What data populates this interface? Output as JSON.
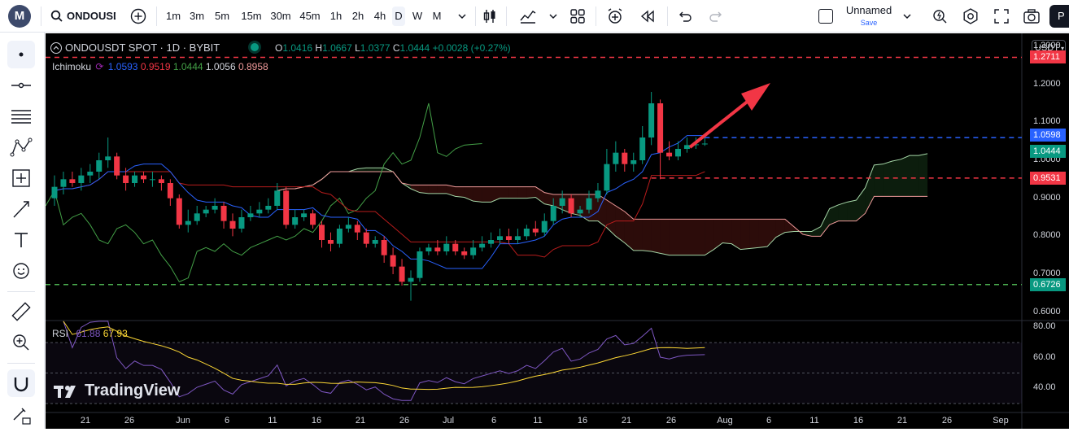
{
  "toolbar": {
    "symbol": "ONDOUSDT",
    "timeframes": [
      "1m",
      "3m",
      "5m",
      "15m",
      "30m",
      "45m",
      "1h",
      "2h",
      "4h",
      "D",
      "W",
      "M"
    ],
    "active_timeframe": "D",
    "layout_name": "Unnamed",
    "save_label": "Save",
    "publish_label": "P"
  },
  "chart_header": {
    "title": "ONDOUSDT SPOT · 1D · BYBIT",
    "o_label": "O",
    "o": "1.0416",
    "h_label": "H",
    "h": "1.0667",
    "l_label": "L",
    "l": "1.0377",
    "c_label": "C",
    "c": "1.0444",
    "change": "+0.0028 (+0.27%)",
    "ichimoku_label": "Ichimoku",
    "ichimoku_values": [
      "1.0593",
      "0.9519",
      "1.0444",
      "1.0056",
      "0.8958"
    ],
    "rsi_label": "RSI",
    "rsi_values": [
      "61.88",
      "67.93"
    ]
  },
  "currency": "USDT",
  "watermark": "TradingView",
  "price_axis": [
    "1.3000",
    "1.2000",
    "1.1000",
    "1.0000",
    "0.9000",
    "0.8000",
    "0.7000",
    "0.6000"
  ],
  "rsi_axis": [
    "80.00",
    "60.00",
    "40.00"
  ],
  "price_labels": [
    {
      "value": "1.2711",
      "color": "#f23645"
    },
    {
      "value": "1.0598",
      "color": "#2962ff"
    },
    {
      "value": "1.0444",
      "color": "#089981"
    },
    {
      "value": "0.9531",
      "color": "#f23645"
    },
    {
      "value": "0.6726",
      "color": "#089981"
    }
  ],
  "time_axis": [
    "21",
    "26",
    "Jun",
    "6",
    "11",
    "16",
    "21",
    "26",
    "Jul",
    "6",
    "11",
    "16",
    "21",
    "26",
    "Aug",
    "6",
    "11",
    "16",
    "21",
    "26",
    "Sep"
  ],
  "colors": {
    "up": "#089981",
    "down": "#f23645",
    "tenkan": "#2962ff",
    "kijun": "#b71c1c",
    "lagging": "#43a047",
    "senkou_a": "#a5d6a7",
    "senkou_b": "#ef9a9a",
    "rsi": "#7e57c2",
    "rsi_ma": "#fdd835"
  },
  "chart_data": {
    "type": "candlestick",
    "x": [
      "May 15",
      "May 16",
      "May 17",
      "May 18",
      "May 19",
      "May 20",
      "May 21",
      "May 22",
      "May 23",
      "May 24",
      "May 25",
      "May 26",
      "May 27",
      "May 28",
      "May 29",
      "May 30",
      "May 31",
      "Jun 1",
      "Jun 2",
      "Jun 3",
      "Jun 4",
      "Jun 5",
      "Jun 6",
      "Jun 7",
      "Jun 8",
      "Jun 9",
      "Jun 10",
      "Jun 11",
      "Jun 12",
      "Jun 13",
      "Jun 14",
      "Jun 15",
      "Jun 16",
      "Jun 17",
      "Jun 18",
      "Jun 19",
      "Jun 20",
      "Jun 21",
      "Jun 22",
      "Jun 23",
      "Jun 24",
      "Jun 25",
      "Jun 26",
      "Jun 27",
      "Jun 28",
      "Jun 29",
      "Jun 30",
      "Jul 1",
      "Jul 2",
      "Jul 3",
      "Jul 4",
      "Jul 5",
      "Jul 6",
      "Jul 7",
      "Jul 8",
      "Jul 9",
      "Jul 10",
      "Jul 11",
      "Jul 12",
      "Jul 13",
      "Jul 14",
      "Jul 15",
      "Jul 16",
      "Jul 17",
      "Jul 18",
      "Jul 19",
      "Jul 20",
      "Jul 21",
      "Jul 22",
      "Jul 23",
      "Jul 24",
      "Jul 25",
      "Jul 26",
      "Jul 27"
    ],
    "open": [
      0.9,
      0.93,
      0.95,
      0.94,
      0.96,
      0.97,
      1.0,
      1.01,
      0.96,
      0.94,
      0.96,
      0.95,
      0.95,
      0.94,
      0.9,
      0.83,
      0.84,
      0.86,
      0.87,
      0.88,
      0.84,
      0.82,
      0.85,
      0.86,
      0.87,
      0.88,
      0.92,
      0.83,
      0.85,
      0.86,
      0.83,
      0.79,
      0.78,
      0.82,
      0.83,
      0.81,
      0.78,
      0.79,
      0.75,
      0.72,
      0.68,
      0.69,
      0.76,
      0.77,
      0.76,
      0.78,
      0.76,
      0.75,
      0.77,
      0.78,
      0.79,
      0.8,
      0.79,
      0.8,
      0.82,
      0.81,
      0.84,
      0.88,
      0.9,
      0.86,
      0.87,
      0.9,
      0.92,
      0.99,
      1.02,
      0.99,
      1.0,
      1.06,
      1.15,
      1.02,
      1.01,
      1.03,
      1.04,
      1.042
    ],
    "close": [
      0.93,
      0.95,
      0.94,
      0.96,
      0.97,
      1.0,
      1.01,
      0.96,
      0.94,
      0.96,
      0.95,
      0.95,
      0.94,
      0.9,
      0.83,
      0.84,
      0.86,
      0.87,
      0.88,
      0.84,
      0.82,
      0.85,
      0.86,
      0.87,
      0.88,
      0.92,
      0.83,
      0.85,
      0.86,
      0.83,
      0.79,
      0.78,
      0.82,
      0.83,
      0.81,
      0.78,
      0.79,
      0.75,
      0.72,
      0.68,
      0.69,
      0.76,
      0.77,
      0.76,
      0.78,
      0.76,
      0.75,
      0.77,
      0.78,
      0.79,
      0.8,
      0.79,
      0.8,
      0.82,
      0.81,
      0.84,
      0.88,
      0.9,
      0.86,
      0.87,
      0.9,
      0.92,
      0.99,
      1.02,
      0.99,
      1.0,
      1.06,
      1.15,
      1.02,
      1.01,
      1.03,
      1.04,
      1.042,
      1.044
    ],
    "high": [
      0.96,
      0.97,
      0.97,
      0.98,
      0.99,
      1.02,
      1.06,
      1.02,
      0.98,
      0.97,
      0.97,
      0.97,
      0.96,
      0.95,
      0.91,
      0.87,
      0.88,
      0.88,
      0.9,
      0.89,
      0.86,
      0.87,
      0.88,
      0.89,
      0.9,
      0.94,
      0.93,
      0.87,
      0.87,
      0.87,
      0.84,
      0.81,
      0.83,
      0.85,
      0.84,
      0.82,
      0.8,
      0.8,
      0.77,
      0.74,
      0.71,
      0.77,
      0.78,
      0.79,
      0.8,
      0.79,
      0.77,
      0.79,
      0.8,
      0.81,
      0.82,
      0.82,
      0.82,
      0.83,
      0.84,
      0.86,
      0.9,
      0.92,
      0.91,
      0.88,
      0.92,
      0.94,
      1.03,
      1.05,
      1.03,
      1.02,
      1.09,
      1.18,
      1.16,
      1.05,
      1.05,
      1.06,
      1.06,
      1.067
    ],
    "low": [
      0.88,
      0.91,
      0.93,
      0.92,
      0.94,
      0.95,
      0.98,
      0.95,
      0.92,
      0.93,
      0.94,
      0.93,
      0.92,
      0.88,
      0.82,
      0.81,
      0.83,
      0.85,
      0.86,
      0.82,
      0.8,
      0.81,
      0.84,
      0.85,
      0.86,
      0.87,
      0.82,
      0.82,
      0.84,
      0.82,
      0.77,
      0.76,
      0.77,
      0.81,
      0.79,
      0.77,
      0.77,
      0.73,
      0.7,
      0.67,
      0.63,
      0.68,
      0.75,
      0.75,
      0.75,
      0.75,
      0.74,
      0.74,
      0.76,
      0.77,
      0.78,
      0.78,
      0.78,
      0.79,
      0.8,
      0.8,
      0.83,
      0.86,
      0.85,
      0.85,
      0.86,
      0.89,
      0.91,
      0.97,
      0.97,
      0.97,
      0.99,
      1.04,
      0.95,
      1.0,
      1.0,
      1.02,
      1.03,
      1.038
    ],
    "price_lines": [
      1.2711,
      1.0598,
      0.9531,
      0.6726
    ],
    "ylim": [
      0.58,
      1.33
    ],
    "rsi_ylim": [
      30,
      85
    ]
  }
}
